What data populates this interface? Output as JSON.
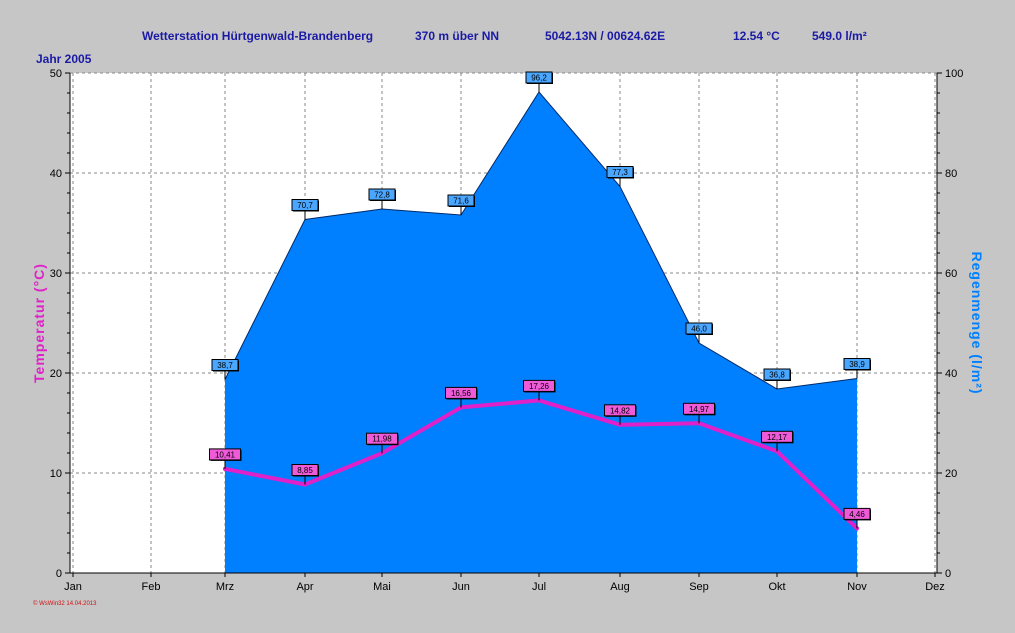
{
  "header": {
    "station": "Wetterstation Hürtgenwald-Brandenberg",
    "altitude": "370 m über NN",
    "coords": "5042.13N / 00624.62E",
    "avg_temp": "12.54 °C",
    "rain_total": "549.0 l/m²"
  },
  "year_label": "Jahr  2005",
  "footer_stamp": "© WsWin32  14.04.2013",
  "colors": {
    "background": "#c6c6c6",
    "plot_bg": "#ffffff",
    "rain_fill": "#0080ff",
    "temp_line": "#e020c8",
    "title_text": "#1a1aa6",
    "left_axis_label": "#e020c8",
    "right_axis_label": "#0080ff",
    "stamp": "#d01010"
  },
  "chart_data": {
    "type": "area",
    "x_labels": [
      "Jan",
      "Feb",
      "Mrz",
      "Apr",
      "Mai",
      "Jun",
      "Jul",
      "Aug",
      "Sep",
      "Okt",
      "Nov",
      "Dez"
    ],
    "y_left": {
      "label": "Temperatur  (°C)",
      "lim": [
        0,
        50
      ],
      "ticks": [
        0,
        10,
        20,
        30,
        40,
        50
      ]
    },
    "y_right": {
      "label": "Regenmenge  (l/m²)",
      "lim": [
        0,
        100
      ],
      "ticks": [
        0,
        20,
        40,
        60,
        80,
        100
      ]
    },
    "grid": true,
    "series": [
      {
        "kind": "area",
        "axis": "right",
        "x": [
          "Mrz",
          "Apr",
          "Mai",
          "Jun",
          "Jul",
          "Aug",
          "Sep",
          "Okt",
          "Nov"
        ],
        "values": [
          38.7,
          70.7,
          72.8,
          71.6,
          96.2,
          77.3,
          46.0,
          36.8,
          38.9
        ],
        "labels": [
          "38,7",
          "70,7",
          "72,8",
          "71,6",
          "96,2",
          "77,3",
          "46,0",
          "36,8",
          "38,9"
        ]
      },
      {
        "kind": "line",
        "axis": "left",
        "x": [
          "Mrz",
          "Apr",
          "Mai",
          "Jun",
          "Jul",
          "Aug",
          "Sep",
          "Okt",
          "Nov"
        ],
        "values": [
          10.41,
          8.85,
          11.98,
          16.56,
          17.26,
          14.82,
          14.97,
          12.17,
          4.46
        ],
        "labels": [
          "10,41",
          "8,85",
          "11,98",
          "16,56",
          "17,26",
          "14,82",
          "14,97",
          "12,17",
          "4,46"
        ]
      }
    ]
  }
}
